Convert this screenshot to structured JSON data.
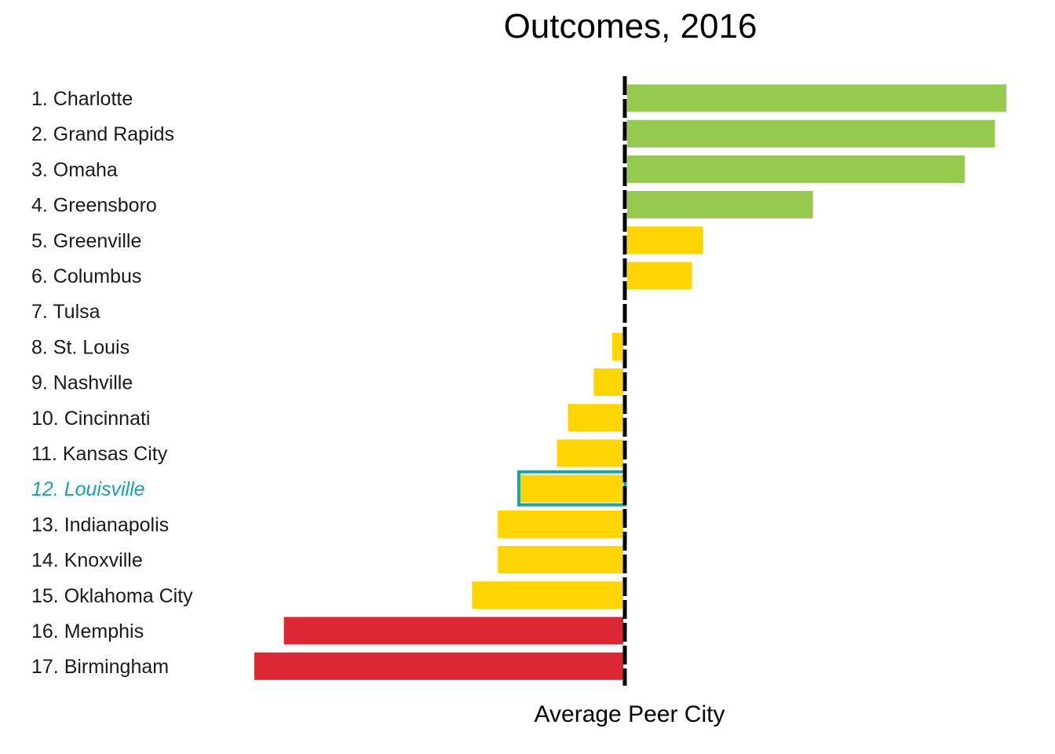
{
  "chart_data": {
    "type": "bar",
    "orientation": "horizontal",
    "title": "Outcomes, 2016",
    "xlabel": "Average Peer City",
    "ylabel": "",
    "baseline_label": "Average Peer City",
    "xlim": [
      -1.0,
      1.03
    ],
    "grid": false,
    "legend": "none",
    "highlight": "12. Louisville",
    "categories": [
      "1. Charlotte",
      "2. Grand Rapids",
      "3. Omaha",
      "4. Greensboro",
      "5. Greenville",
      "6. Columbus",
      "7. Tulsa",
      "8. St. Louis",
      "9. Nashville",
      "10. Cincinnati",
      "11. Kansas City",
      "12. Louisville",
      "13. Indianapolis",
      "14. Knoxville",
      "15. Oklahoma City",
      "16. Memphis",
      "17. Birmingham"
    ],
    "values": [
      1.0,
      0.97,
      0.89,
      0.49,
      0.2,
      0.17,
      0.0,
      -0.03,
      -0.08,
      -0.15,
      -0.18,
      -0.28,
      -0.34,
      -0.34,
      -0.41,
      -0.92,
      -1.0
    ],
    "bar_colors": [
      "#96ca4f",
      "#96ca4f",
      "#96ca4f",
      "#96ca4f",
      "#ffd500",
      "#ffd500",
      "#ffd500",
      "#ffd500",
      "#ffd500",
      "#ffd500",
      "#ffd500",
      "#ffd500",
      "#ffd500",
      "#ffd500",
      "#ffd500",
      "#dc2834",
      "#dc2834"
    ],
    "highlight_color": "#17a3a8",
    "baseline_color": "#000000"
  }
}
